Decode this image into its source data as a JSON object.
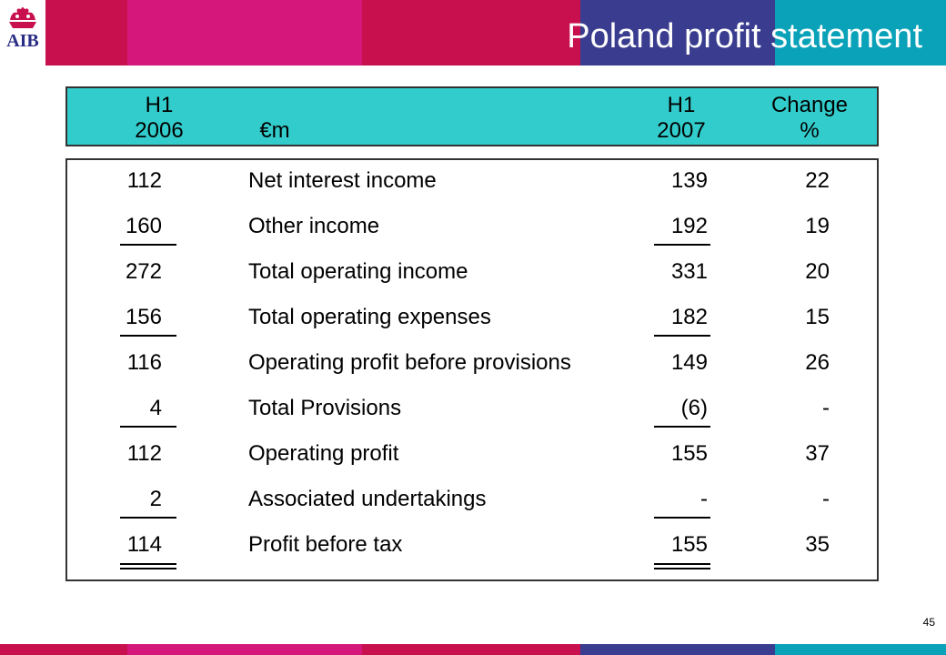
{
  "header": {
    "title": "Poland profit statement",
    "logo_text": "AIB",
    "logo_icon": "ark-logo-icon"
  },
  "colors": {
    "banner_red": "#c8104f",
    "banner_magenta": "#d5177b",
    "banner_navy": "#3a3d8f",
    "banner_teal": "#0aa2b8",
    "header_box": "#33cccc"
  },
  "table_header": {
    "col1": {
      "line1": "H1",
      "line2": "2006"
    },
    "col2": {
      "line1": "",
      "line2": "€m"
    },
    "col3": {
      "line1": "H1",
      "line2": "2007"
    },
    "col4": {
      "line1": "Change",
      "line2": "%"
    }
  },
  "rows": [
    {
      "h1_2006": "112",
      "label": "Net interest income",
      "h1_2007": "139",
      "change": "22"
    },
    {
      "h1_2006": "160",
      "label": "Other income",
      "h1_2007": "192",
      "change": "19"
    },
    {
      "h1_2006": "272",
      "label": "Total operating income",
      "h1_2007": "331",
      "change": "20"
    },
    {
      "h1_2006": "156",
      "label": "Total operating expenses",
      "h1_2007": "182",
      "change": "15"
    },
    {
      "h1_2006": "116",
      "label": "Operating profit before provisions",
      "h1_2007": "149",
      "change": "26"
    },
    {
      "h1_2006": "4",
      "label": "Total Provisions",
      "h1_2007": "(6)",
      "change": "-"
    },
    {
      "h1_2006": "112",
      "label": "Operating profit",
      "h1_2007": "155",
      "change": "37"
    },
    {
      "h1_2006": "2",
      "label": "Associated undertakings",
      "h1_2007": "-",
      "change": "-"
    },
    {
      "h1_2006": "114",
      "label": "Profit before tax",
      "h1_2007": "155",
      "change": "35"
    }
  ],
  "page_number": "45"
}
